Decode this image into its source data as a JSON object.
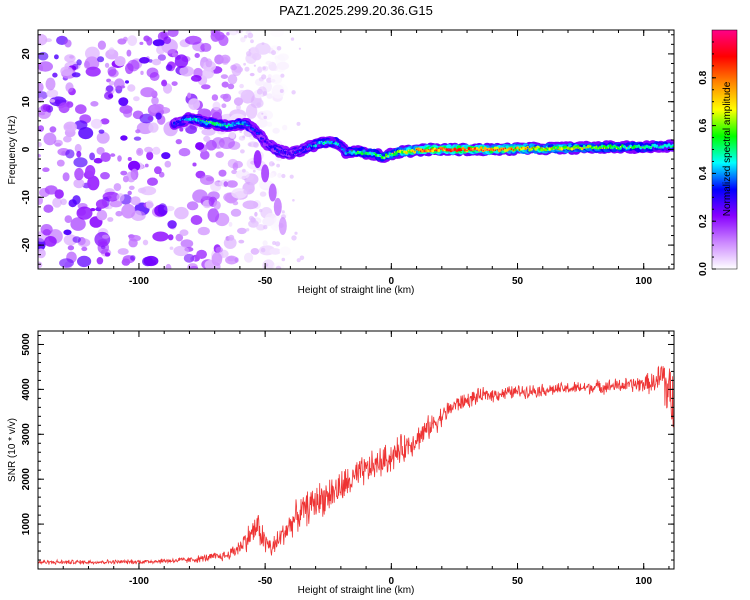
{
  "title": "PAZ1.2025.299.20.36.G15",
  "chart_data": [
    {
      "type": "heatmap",
      "xlabel": "Height of straight line (km)",
      "ylabel": "Frequency (Hz)",
      "xlim": [
        -140,
        112
      ],
      "ylim": [
        -25,
        25
      ],
      "xticks": [
        -100,
        -50,
        0,
        50,
        100
      ],
      "yticks": [
        -20,
        -10,
        0,
        10,
        20
      ],
      "colorbar": {
        "label": "Normalized spectral amplitude",
        "range": [
          0,
          1
        ],
        "ticks": [
          0.0,
          0.2,
          0.4,
          0.6,
          0.8
        ],
        "colors": [
          "#ffffff",
          "#cc88ff",
          "#8800ff",
          "#0000ff",
          "#00ffff",
          "#00ff00",
          "#ffff00",
          "#ff8800",
          "#ff0000",
          "#ff0088"
        ]
      },
      "noise_region_km": [
        -140,
        -50
      ],
      "ridge": {
        "x": [
          -86,
          -80,
          -72,
          -65,
          -58,
          -53,
          -50,
          -46,
          -40,
          -33,
          -27,
          -22,
          -18,
          -13,
          -8,
          -3,
          3,
          8,
          15,
          25,
          40,
          55,
          70,
          85,
          100,
          112
        ],
        "y": [
          5.5,
          6.5,
          5.5,
          5,
          5.5,
          3.5,
          1.5,
          0,
          -1,
          0.5,
          1.5,
          1.5,
          -0.5,
          -0.5,
          -0.8,
          -1.5,
          -0.5,
          -0.3,
          0,
          0,
          0,
          0.2,
          0.3,
          0.5,
          0.5,
          0.8
        ],
        "amplitude": [
          0.35,
          0.45,
          0.55,
          0.5,
          0.45,
          0.35,
          0.3,
          0.35,
          0.3,
          0.4,
          0.5,
          0.45,
          0.45,
          0.55,
          0.55,
          0.6,
          0.65,
          0.8,
          0.9,
          0.95,
          0.85,
          0.75,
          0.7,
          0.6,
          0.55,
          0.5
        ]
      },
      "spur": {
        "x": [
          -53,
          -50,
          -47,
          -45,
          -43
        ],
        "y": [
          -2,
          -5,
          -9,
          -12,
          -16
        ]
      }
    },
    {
      "type": "line",
      "xlabel": "Height of straight line (km)",
      "ylabel": "SNR (10 * v/v)",
      "xlim": [
        -140,
        112
      ],
      "ylim": [
        0,
        5300
      ],
      "xticks": [
        -100,
        -50,
        0,
        50,
        100
      ],
      "yticks": [
        1000,
        2000,
        3000,
        4000,
        5000
      ],
      "color": "#ee3333",
      "envelope": {
        "x": [
          -140,
          -100,
          -80,
          -65,
          -60,
          -56,
          -53,
          -50,
          -47,
          -44,
          -40,
          -37,
          -30,
          -20,
          -10,
          0,
          10,
          18,
          25,
          35,
          50,
          65,
          80,
          95,
          105,
          108,
          110,
          112
        ],
        "y": [
          150,
          160,
          200,
          300,
          500,
          750,
          950,
          600,
          450,
          700,
          1000,
          1200,
          1500,
          1800,
          2200,
          2500,
          2900,
          3300,
          3650,
          3850,
          3950,
          4000,
          4050,
          4100,
          4150,
          4300,
          3800,
          3600
        ],
        "amplitude": [
          50,
          50,
          70,
          120,
          200,
          300,
          350,
          300,
          250,
          300,
          300,
          350,
          400,
          400,
          350,
          350,
          300,
          250,
          200,
          170,
          150,
          140,
          150,
          170,
          250,
          700,
          900,
          700
        ]
      }
    }
  ]
}
